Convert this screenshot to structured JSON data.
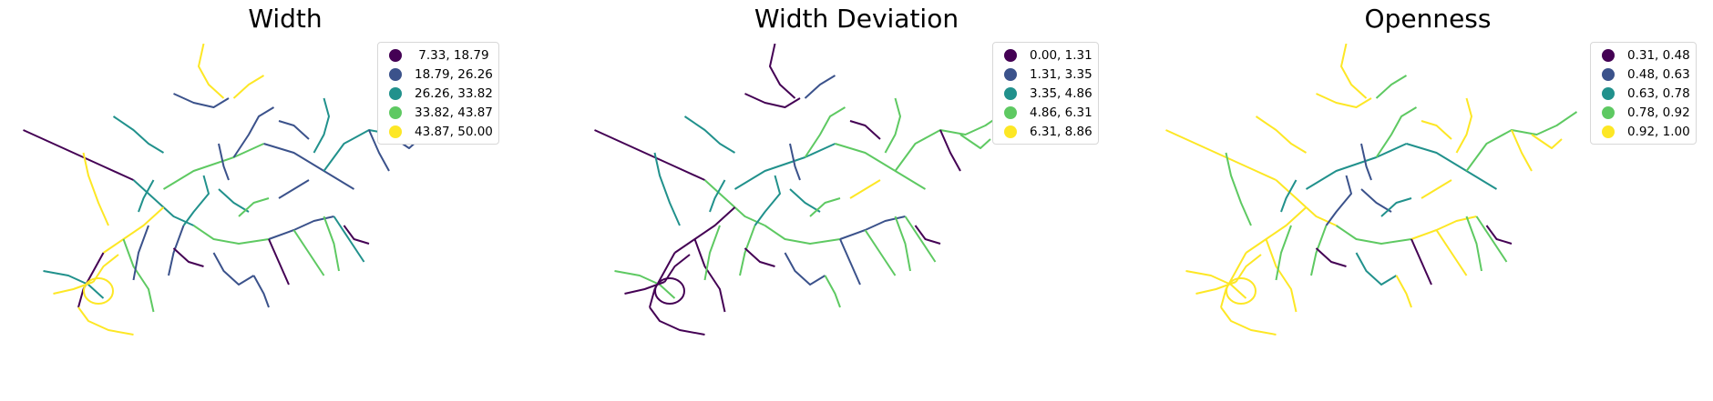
{
  "colors": [
    "#440154",
    "#3b528b",
    "#21918c",
    "#5ec962",
    "#fde725"
  ],
  "panels": [
    {
      "title": "Width",
      "legend": [
        " 7.33, 18.79",
        "18.79, 26.26",
        "26.26, 33.82",
        "33.82, 43.87",
        "43.87, 50.00"
      ]
    },
    {
      "title": "Width Deviation",
      "legend": [
        "0.00, 1.31",
        "1.31, 3.35",
        "3.35, 4.86",
        "4.86, 6.31",
        "6.31, 8.86"
      ]
    },
    {
      "title": "Openness",
      "legend": [
        "0.31, 0.48",
        "0.48, 0.63",
        "0.63, 0.78",
        "0.78, 0.92",
        "0.92, 1.00"
      ]
    }
  ]
}
